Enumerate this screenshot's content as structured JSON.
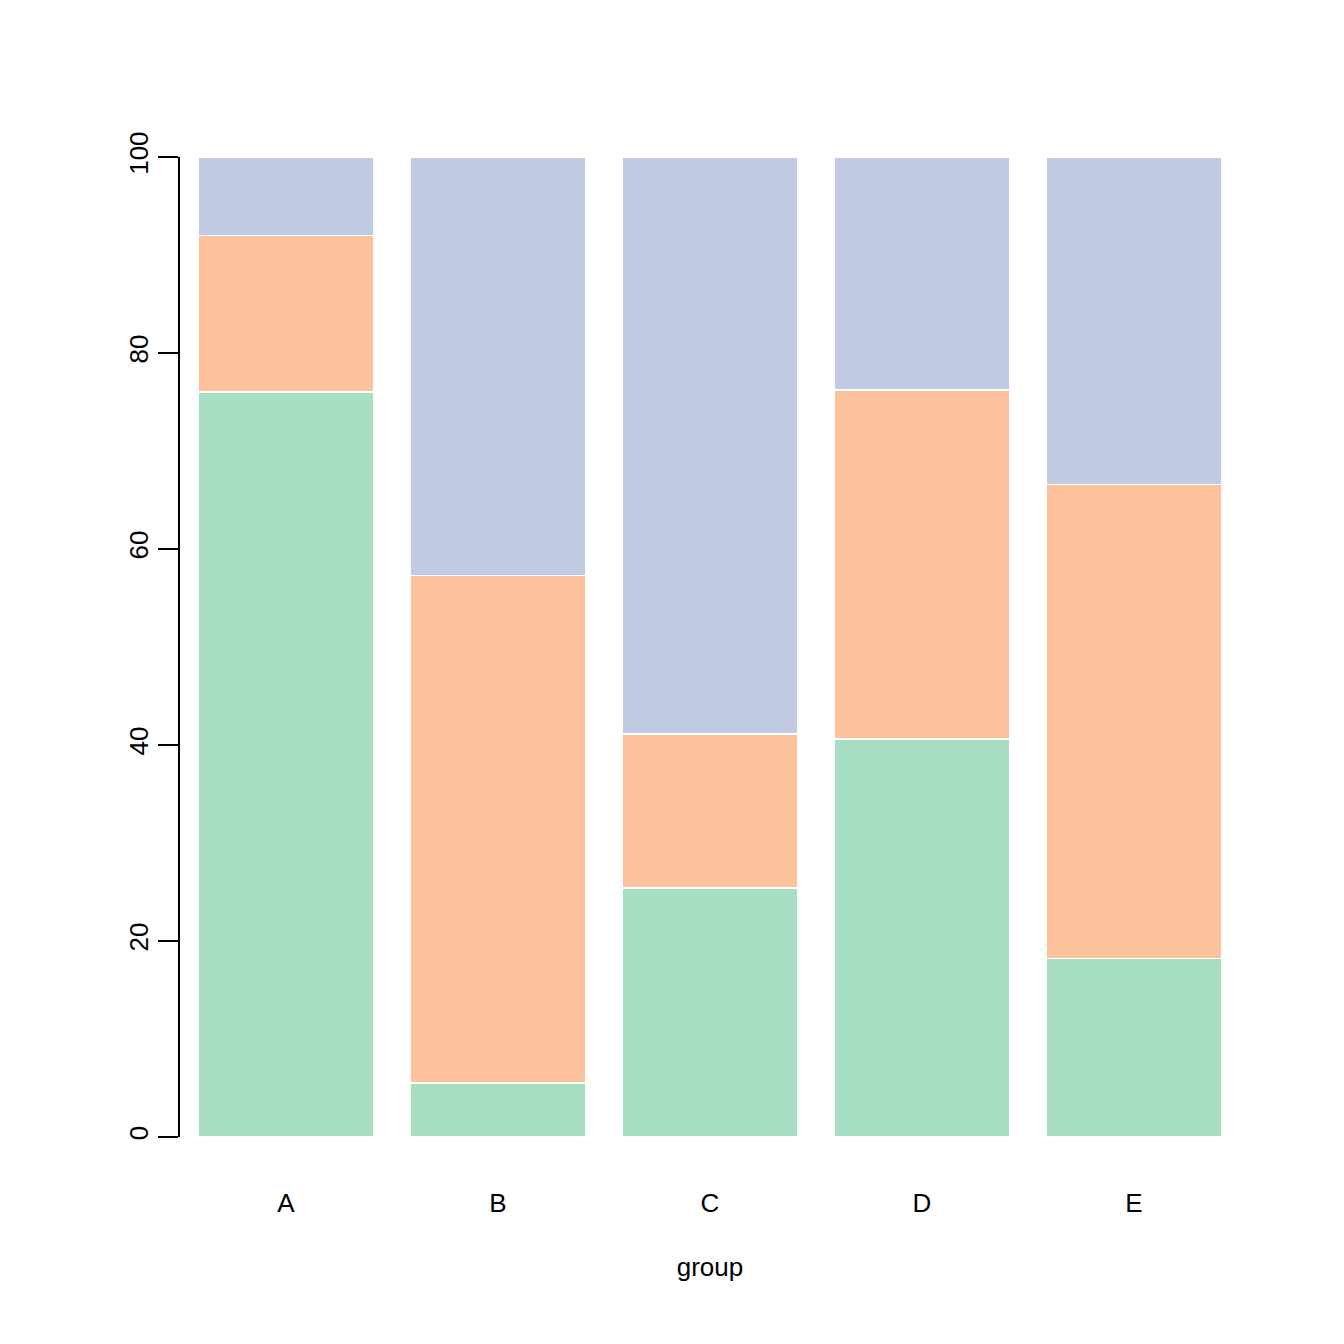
{
  "chart_data": {
    "type": "bar",
    "stacked": true,
    "x_label": "group",
    "categories": [
      "A",
      "B",
      "C",
      "D",
      "E"
    ],
    "series": [
      {
        "color": "#a6ddc3",
        "values": [
          76,
          5.5,
          25.4,
          40.6,
          18.2
        ]
      },
      {
        "color": "#fbc29c",
        "values": [
          16,
          51.8,
          15.7,
          35.6,
          48.4
        ]
      },
      {
        "color": "#c0cae2",
        "values": [
          8,
          42.7,
          58.9,
          23.8,
          33.4
        ]
      }
    ],
    "ylim": [
      0,
      100
    ],
    "yticks": [
      0,
      20,
      40,
      60,
      80,
      100
    ],
    "grid": false
  }
}
